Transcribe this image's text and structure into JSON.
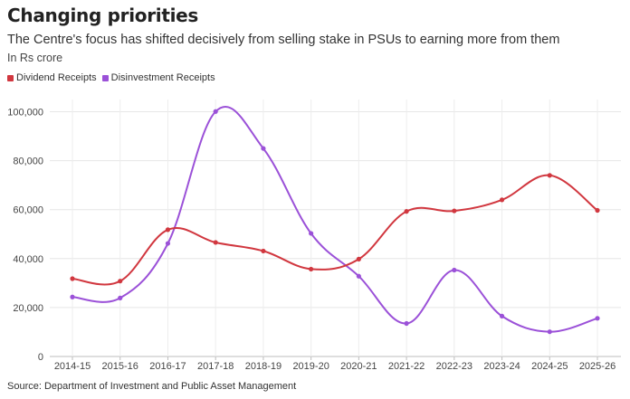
{
  "title": "Changing priorities",
  "subtitle": "The Centre's focus has shifted decisively from selling stake in PSUs to earning more from them",
  "unit_note": "In Rs crore",
  "source": "Source: Department of Investment and Public Asset Management",
  "chart_data": {
    "type": "line",
    "categories": [
      "2014-15",
      "2015-16",
      "2016-17",
      "2017-18",
      "2018-19",
      "2019-20",
      "2020-21",
      "2021-22",
      "2022-23",
      "2023-24",
      "2024-25",
      "2025-26"
    ],
    "y_ticks": [
      "0",
      "20,000",
      "40,000",
      "60,000",
      "80,000",
      "100,000"
    ],
    "ylim": [
      0,
      105000
    ],
    "grid": true,
    "legend_position": "top-left",
    "series": [
      {
        "name": "Dividend Receipts",
        "color": "#d1373f",
        "values": [
          31800,
          30800,
          51800,
          46600,
          43100,
          35700,
          39800,
          59300,
          59500,
          64000,
          74000,
          59700
        ]
      },
      {
        "name": "Disinvestment Receipts",
        "color": "#9b51d8",
        "values": [
          24300,
          23900,
          46200,
          100100,
          85000,
          50300,
          32800,
          13500,
          35300,
          16500,
          10100,
          15600
        ]
      }
    ]
  }
}
